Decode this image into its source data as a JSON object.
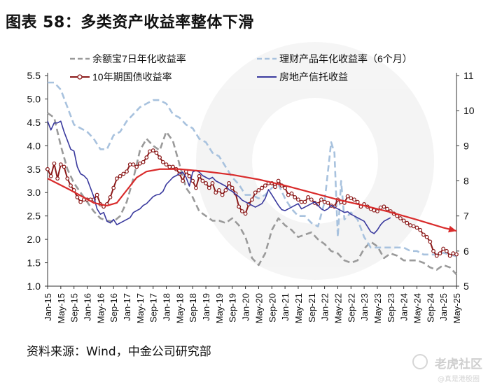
{
  "title": "图表 58：多类资产收益率整体下滑",
  "source": "资料来源：Wind，中金公司研究部",
  "watermark": "老虎社区",
  "watermark_sub": "@真是港股圈",
  "chart_data": {
    "type": "line",
    "y_left": {
      "min": 1.0,
      "max": 5.5,
      "ticks": [
        "1.0",
        "1.5",
        "2.0",
        "2.5",
        "3.0",
        "3.5",
        "4.0",
        "4.5",
        "5.0",
        "5.5"
      ]
    },
    "y_right": {
      "min": 5,
      "max": 11,
      "ticks": [
        "5",
        "6",
        "7",
        "8",
        "9",
        "10",
        "11"
      ]
    },
    "x_ticks": [
      "Jan-15",
      "May-15",
      "Sep-15",
      "Jan-16",
      "May-16",
      "Sep-16",
      "Jan-17",
      "May-17",
      "Sep-17",
      "Jan-18",
      "May-18",
      "Sep-18",
      "Jan-19",
      "May-19",
      "Sep-19",
      "Jan-20",
      "May-20",
      "Sep-20",
      "Jan-21",
      "May-21",
      "Sep-21",
      "Jan-22",
      "May-22",
      "Sep-22",
      "Jan-23",
      "May-23",
      "Sep-23",
      "Jan-24",
      "May-24",
      "Sep-24",
      "Jan-25",
      "May-25"
    ],
    "legend": [
      {
        "name": "余额宝7日年化收益率",
        "style": "dash",
        "color": "#9a9a9a"
      },
      {
        "name": "理财产品年化收益率（6个月）",
        "style": "dash",
        "color": "#a8c2de"
      },
      {
        "name": "10年期国债收益率",
        "style": "line-marker",
        "color": "#8b1a1a"
      },
      {
        "name": "房地产信托收益",
        "style": "line",
        "color": "#3a3a9e"
      }
    ],
    "series": [
      {
        "name": "余额宝7日年化收益率",
        "axis": "left",
        "color": "#9a9a9a",
        "dash": true,
        "x": [
          0,
          2,
          4,
          6,
          8,
          10,
          12,
          14,
          16,
          18,
          20,
          22,
          24,
          26,
          28,
          30,
          32,
          34,
          36,
          38,
          40,
          42,
          44,
          46,
          48,
          50,
          52,
          54,
          56,
          58,
          60,
          62,
          64,
          66,
          68,
          70,
          72,
          74,
          76,
          78,
          80,
          82,
          84,
          86,
          88,
          90,
          92,
          94,
          96,
          98,
          100,
          102,
          104,
          106,
          108,
          110,
          112,
          114,
          116,
          118,
          120,
          122,
          124
        ],
        "y": [
          4.7,
          4.6,
          4.0,
          3.5,
          3.2,
          3.0,
          2.8,
          2.6,
          2.45,
          2.4,
          2.38,
          2.5,
          2.8,
          3.3,
          3.9,
          4.15,
          4.0,
          3.9,
          4.3,
          4.1,
          3.6,
          3.1,
          2.9,
          2.6,
          2.5,
          2.4,
          2.4,
          2.35,
          2.45,
          2.3,
          2.05,
          1.6,
          1.45,
          1.7,
          2.2,
          2.45,
          2.3,
          2.2,
          2.05,
          2.1,
          2.15,
          2.0,
          1.9,
          1.75,
          1.7,
          1.55,
          1.5,
          1.55,
          1.8,
          1.95,
          1.85,
          1.6,
          1.7,
          1.65,
          1.55,
          1.55,
          1.55,
          1.5,
          1.4,
          1.35,
          1.45,
          1.4,
          1.25
        ]
      },
      {
        "name": "理财产品年化收益率（6个月）",
        "axis": "right",
        "color": "#a8c2de",
        "dash": true,
        "x": [
          0,
          2,
          4,
          6,
          8,
          10,
          12,
          14,
          16,
          18,
          20,
          22,
          24,
          26,
          28,
          30,
          32,
          34,
          36,
          38,
          40,
          42,
          44,
          46,
          48,
          50,
          52,
          54,
          56,
          58,
          60,
          62,
          64,
          66,
          68,
          70,
          72,
          74,
          76,
          78,
          80,
          82,
          84,
          86,
          87,
          88,
          89,
          90,
          92,
          94,
          96,
          98,
          100,
          102,
          104,
          106,
          108,
          110,
          112,
          114,
          116,
          118,
          120,
          122,
          124
        ],
        "x_note": "",
        "y": [
          10.8,
          10.8,
          10.6,
          10.1,
          9.6,
          9.5,
          9.4,
          9.2,
          8.9,
          8.9,
          9.3,
          9.4,
          9.7,
          9.9,
          10.1,
          10.2,
          10.3,
          10.3,
          10.2,
          9.9,
          9.8,
          9.6,
          9.5,
          9.2,
          9.1,
          8.8,
          8.7,
          8.4,
          8.1,
          7.9,
          7.6,
          7.6,
          7.5,
          7.6,
          7.8,
          7.9,
          7.5,
          7.2,
          7.0,
          7.0,
          6.8,
          6.7,
          7.4,
          9.1,
          8.8,
          6.4,
          8.0,
          6.9,
          7.1,
          6.9,
          6.4,
          6.1,
          6.1,
          6.1,
          6.1,
          6.1,
          6.1,
          6.0,
          6.0,
          5.9,
          5.9,
          5.9,
          5.95,
          5.9,
          5.85
        ]
      },
      {
        "name": "10年期国债收益率",
        "axis": "left",
        "color": "#8b1a1a",
        "marker": true,
        "x": [
          0,
          1,
          2,
          3,
          4,
          5,
          6,
          7,
          8,
          9,
          10,
          11,
          12,
          13,
          14,
          15,
          16,
          17,
          18,
          19,
          20,
          21,
          22,
          23,
          24,
          25,
          26,
          27,
          28,
          29,
          30,
          31,
          32,
          33,
          34,
          35,
          36,
          37,
          38,
          39,
          40,
          41,
          42,
          43,
          44,
          45,
          46,
          47,
          48,
          49,
          50,
          51,
          52,
          53,
          54,
          55,
          56,
          57,
          58,
          59,
          60,
          61,
          62,
          63,
          64,
          65,
          66,
          67,
          68,
          69,
          70,
          71,
          72,
          73,
          74,
          75,
          76,
          77,
          78,
          79,
          80,
          81,
          82,
          83,
          84,
          85,
          86,
          87,
          88,
          89,
          90,
          91,
          92,
          93,
          94,
          95,
          96,
          97,
          98,
          99,
          100,
          101,
          102,
          103,
          104,
          105,
          106,
          107,
          108,
          109,
          110,
          111,
          112,
          113,
          114,
          115,
          116,
          117,
          118,
          119,
          120,
          121,
          122,
          123,
          124
        ],
        "y": [
          3.5,
          3.35,
          3.62,
          3.3,
          3.6,
          3.55,
          3.3,
          3.15,
          3.05,
          2.9,
          2.8,
          2.85,
          2.85,
          2.85,
          2.85,
          2.95,
          2.75,
          2.7,
          2.75,
          2.9,
          3.1,
          3.3,
          3.35,
          3.4,
          3.45,
          3.6,
          3.6,
          3.55,
          3.62,
          3.65,
          3.75,
          3.88,
          3.9,
          3.85,
          3.75,
          3.65,
          3.6,
          3.55,
          3.55,
          3.5,
          3.4,
          3.25,
          3.45,
          3.35,
          3.25,
          3.1,
          3.35,
          3.25,
          3.2,
          3.1,
          3.2,
          3.0,
          3.05,
          2.95,
          3.05,
          3.2,
          3.1,
          2.98,
          2.7,
          2.6,
          2.55,
          2.75,
          2.85,
          3.0,
          3.05,
          3.1,
          3.15,
          3.2,
          3.2,
          3.12,
          3.25,
          3.15,
          3.1,
          2.95,
          2.98,
          2.9,
          2.85,
          2.8,
          2.8,
          2.9,
          2.85,
          2.78,
          2.75,
          2.85,
          2.8,
          2.78,
          2.72,
          2.7,
          2.85,
          2.8,
          2.78,
          2.92,
          2.88,
          2.85,
          2.8,
          2.7,
          2.75,
          2.7,
          2.65,
          2.62,
          2.6,
          2.68,
          2.7,
          2.65,
          2.6,
          2.55,
          2.5,
          2.45,
          2.4,
          2.35,
          2.3,
          2.28,
          2.25,
          2.2,
          2.1,
          2.05,
          1.95,
          1.75,
          1.65,
          1.7,
          1.8,
          1.75,
          1.65,
          1.7,
          1.68
        ]
      },
      {
        "name": "房地产信托收益",
        "axis": "right",
        "color": "#3a3a9e",
        "x": [
          0,
          1,
          2,
          3,
          4,
          5,
          6,
          7,
          8,
          9,
          10,
          11,
          12,
          13,
          14,
          15,
          16,
          17,
          18,
          19,
          20,
          21,
          22,
          23,
          24,
          25,
          26,
          27,
          28,
          29,
          30,
          31,
          32,
          33,
          34,
          35,
          36,
          37,
          38,
          39,
          40,
          41,
          42,
          43,
          44,
          45,
          46,
          47,
          48,
          49,
          50,
          51,
          52,
          53,
          54,
          55,
          56,
          57,
          58,
          59,
          60,
          61,
          62,
          63,
          64,
          65,
          66,
          67,
          68,
          69,
          70,
          71,
          72,
          73,
          74,
          75,
          76,
          77,
          78,
          79,
          80,
          81,
          82,
          83,
          84,
          85,
          86,
          87,
          88,
          89,
          90,
          91,
          92,
          93,
          94,
          95,
          96,
          97,
          98,
          99,
          100,
          101,
          102,
          103,
          104
        ],
        "y": [
          9.7,
          9.45,
          9.65,
          9.65,
          9.7,
          9.4,
          9.15,
          8.9,
          8.85,
          8.4,
          8.2,
          8.15,
          8.05,
          7.8,
          7.55,
          7.2,
          7.05,
          7.1,
          6.85,
          6.8,
          6.9,
          6.75,
          6.8,
          6.85,
          6.9,
          6.95,
          7.1,
          7.15,
          7.2,
          7.3,
          7.35,
          7.45,
          7.55,
          7.6,
          7.62,
          7.7,
          7.9,
          8.0,
          8.1,
          8.15,
          8.2,
          8.25,
          8.1,
          7.85,
          8.25,
          8.3,
          8.25,
          8.15,
          8.1,
          8.05,
          8.1,
          8.0,
          7.95,
          7.9,
          7.85,
          7.75,
          7.7,
          7.62,
          7.55,
          7.45,
          7.4,
          7.35,
          7.3,
          7.25,
          7.3,
          7.35,
          7.5,
          7.75,
          7.6,
          7.45,
          7.3,
          7.18,
          7.15,
          7.2,
          7.25,
          7.3,
          7.35,
          7.2,
          7.25,
          7.3,
          7.35,
          7.4,
          7.3,
          7.2,
          7.15,
          7.2,
          7.3,
          7.25,
          7.2,
          7.15,
          7.1,
          7.12,
          7.05,
          7.0,
          6.95,
          6.9,
          6.85,
          6.7,
          6.55,
          6.5,
          6.6,
          6.75,
          6.85,
          6.9,
          6.95
        ]
      },
      {
        "name": "",
        "axis": "left",
        "color": "#d92b2b",
        "trend": true,
        "x": [
          0,
          7,
          14,
          18,
          21,
          24,
          27,
          30,
          34,
          40,
          48,
          56,
          64,
          72,
          80,
          88,
          96,
          104,
          112,
          120,
          124
        ],
        "y": [
          3.3,
          3.05,
          2.78,
          2.72,
          2.78,
          3.05,
          3.32,
          3.45,
          3.5,
          3.5,
          3.45,
          3.38,
          3.28,
          3.15,
          3.0,
          2.85,
          2.72,
          2.58,
          2.42,
          2.25,
          2.18
        ]
      }
    ]
  }
}
